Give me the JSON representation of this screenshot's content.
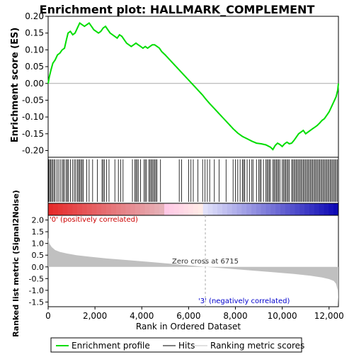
{
  "chart_data": {
    "type": "line",
    "title": "Enrichment plot: HALLMARK_COMPLEMENT",
    "es_panel": {
      "ylabel": "Enrichment score (ES)",
      "ylim": [
        -0.22,
        0.2
      ],
      "yticks": [
        -0.2,
        -0.15,
        -0.1,
        -0.05,
        0.0,
        0.05,
        0.1,
        0.15,
        0.2
      ],
      "ytick_labels": [
        "-0.20",
        "-0.15",
        "-0.10",
        "-0.05",
        "0.00",
        "0.05",
        "0.10",
        "0.15",
        "0.20"
      ],
      "x": [
        0,
        50,
        120,
        200,
        300,
        400,
        500,
        600,
        700,
        780,
        850,
        950,
        1050,
        1150,
        1250,
        1350,
        1450,
        1550,
        1650,
        1750,
        1850,
        1950,
        2050,
        2150,
        2250,
        2350,
        2450,
        2550,
        2650,
        2750,
        2850,
        2950,
        3050,
        3150,
        3250,
        3350,
        3450,
        3550,
        3650,
        3750,
        3850,
        3950,
        4050,
        4150,
        4250,
        4350,
        4450,
        4550,
        4650,
        4750,
        4850,
        5000,
        5200,
        5400,
        5600,
        5800,
        6000,
        6200,
        6400,
        6600,
        6715,
        6900,
        7100,
        7300,
        7500,
        7700,
        7900,
        8100,
        8300,
        8500,
        8700,
        8900,
        9100,
        9300,
        9500,
        9600,
        9700,
        9800,
        9900,
        10000,
        10100,
        10200,
        10300,
        10400,
        10500,
        10600,
        10700,
        10800,
        10900,
        11000,
        11100,
        11200,
        11300,
        11400,
        11500,
        11600,
        11700,
        11800,
        11900,
        12000,
        12100,
        12200,
        12300,
        12370,
        12400
      ],
      "y": [
        0.0,
        0.02,
        0.04,
        0.06,
        0.07,
        0.085,
        0.09,
        0.1,
        0.105,
        0.13,
        0.15,
        0.155,
        0.145,
        0.15,
        0.165,
        0.18,
        0.175,
        0.17,
        0.175,
        0.18,
        0.17,
        0.16,
        0.155,
        0.15,
        0.155,
        0.165,
        0.17,
        0.16,
        0.15,
        0.145,
        0.14,
        0.135,
        0.145,
        0.14,
        0.13,
        0.12,
        0.115,
        0.11,
        0.115,
        0.12,
        0.115,
        0.11,
        0.105,
        0.11,
        0.105,
        0.11,
        0.115,
        0.115,
        0.11,
        0.105,
        0.095,
        0.085,
        0.07,
        0.055,
        0.04,
        0.025,
        0.01,
        -0.005,
        -0.02,
        -0.035,
        -0.045,
        -0.06,
        -0.075,
        -0.09,
        -0.105,
        -0.12,
        -0.135,
        -0.148,
        -0.158,
        -0.165,
        -0.172,
        -0.178,
        -0.18,
        -0.183,
        -0.19,
        -0.197,
        -0.185,
        -0.178,
        -0.182,
        -0.188,
        -0.18,
        -0.175,
        -0.18,
        -0.178,
        -0.17,
        -0.16,
        -0.15,
        -0.145,
        -0.14,
        -0.15,
        -0.145,
        -0.14,
        -0.135,
        -0.13,
        -0.125,
        -0.118,
        -0.11,
        -0.105,
        -0.095,
        -0.085,
        -0.07,
        -0.055,
        -0.04,
        -0.02,
        0.0
      ],
      "line_color": "#00dd00"
    },
    "hits": [
      20,
      60,
      100,
      150,
      200,
      250,
      300,
      380,
      450,
      520,
      600,
      650,
      700,
      780,
      820,
      870,
      950,
      1050,
      1120,
      1180,
      1250,
      1300,
      1350,
      1400,
      1450,
      1500,
      1650,
      1750,
      1900,
      2100,
      2300,
      2350,
      2400,
      2500,
      2600,
      2850,
      3000,
      3100,
      3200,
      3600,
      3700,
      3750,
      3800,
      3850,
      3950,
      4100,
      4150,
      4200,
      4300,
      4350,
      4400,
      4450,
      4500,
      4550,
      4600,
      4650,
      4800,
      5600,
      5700,
      6000,
      6100,
      6200,
      6400,
      6600,
      6700,
      6800,
      6900,
      7100,
      7300,
      7600,
      7900,
      8000,
      8100,
      8200,
      8300,
      8350,
      8400,
      8500,
      8600,
      8700,
      8750,
      8900,
      9000,
      9050,
      9100,
      9200,
      9300,
      9350,
      9400,
      9450,
      9500,
      9600,
      9650,
      9700,
      9750,
      9800,
      9850,
      9900,
      10000,
      10050,
      10100,
      10150,
      10200,
      10250,
      10300,
      10400,
      10450,
      10500,
      10550,
      10600,
      10650,
      10700,
      10750,
      10800,
      10850,
      10900,
      10950,
      11000,
      11050,
      11100,
      11150,
      11200,
      11250,
      11300,
      11350,
      11400,
      11450,
      11500,
      11550,
      11600,
      11650,
      11700,
      11750,
      11800,
      11850,
      11900,
      11950,
      12000,
      12050,
      12100,
      12150,
      12200,
      12250,
      12300,
      12350
    ],
    "metric_panel": {
      "ylabel": "Ranked list metric (Signal2Noise)",
      "ylim": [
        -1.7,
        2.2
      ],
      "yticks": [
        -1.5,
        -1.0,
        -0.5,
        0.0,
        0.5,
        1.0,
        1.5,
        2.0
      ],
      "ytick_labels": [
        "-1.5",
        "-1.0",
        "-0.5",
        "0.0",
        "0.5",
        "1.0",
        "1.5",
        "2.0"
      ],
      "curve_x": [
        0,
        50,
        150,
        300,
        500,
        800,
        1200,
        1800,
        2500,
        3500,
        4500,
        5500,
        6200,
        6715,
        7500,
        8500,
        9500,
        10500,
        11200,
        11700,
        12000,
        12200,
        12300,
        12370,
        12400
      ],
      "curve_y": [
        1.25,
        1.0,
        0.85,
        0.72,
        0.64,
        0.57,
        0.5,
        0.43,
        0.36,
        0.28,
        0.2,
        0.11,
        0.05,
        0.0,
        -0.06,
        -0.14,
        -0.22,
        -0.3,
        -0.38,
        -0.45,
        -0.52,
        -0.6,
        -0.72,
        -1.0,
        -1.6
      ],
      "fill_color": "#c0c0c0"
    },
    "xlabel": "Rank in Ordered Dataset",
    "xlim": [
      0,
      12400
    ],
    "xticks": [
      0,
      2000,
      4000,
      6000,
      8000,
      10000,
      12000
    ],
    "xtick_labels": [
      "0",
      "2,000",
      "4,000",
      "6,000",
      "8,000",
      "10,000",
      "12,000"
    ],
    "zero_cross": 6715,
    "annotations": {
      "pos_label": "'0' (positively correlated)",
      "neg_label": "'3' (negatively correlated)",
      "zero_cross_label": "Zero cross at 6715"
    },
    "legend": {
      "placement": "bottom",
      "items": [
        {
          "label": "Enrichment profile",
          "color": "#00dd00"
        },
        {
          "label": "Hits",
          "color": "#000000"
        },
        {
          "label": "Ranking metric scores",
          "color": "#c0c0c0"
        }
      ]
    }
  }
}
